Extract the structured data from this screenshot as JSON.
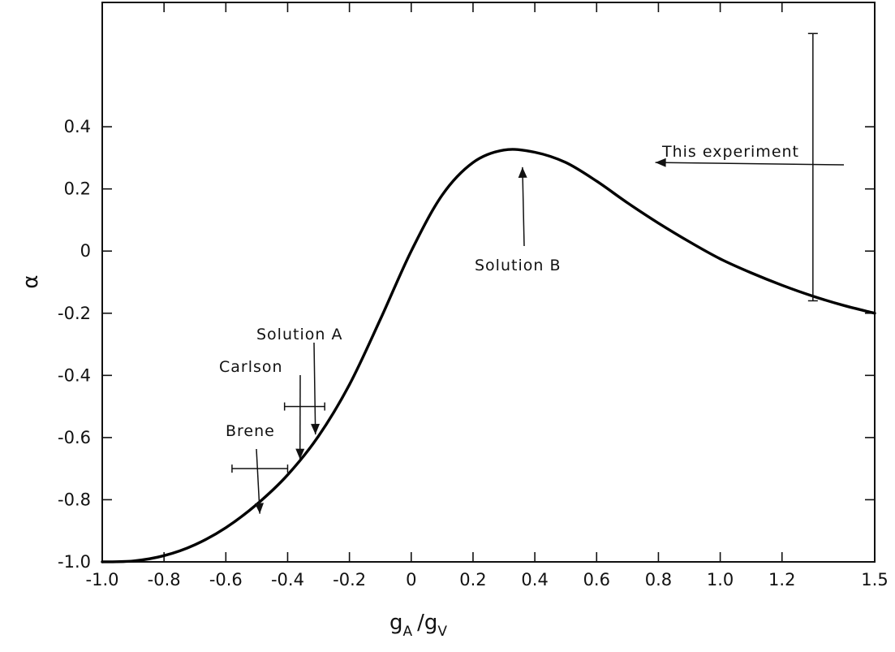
{
  "chart_data": {
    "type": "line",
    "xlabel": {
      "main": "g",
      "sub1": "A",
      "slash": "/g",
      "sub2": "V"
    },
    "ylabel": "α",
    "xlim": [
      -1.0,
      1.5
    ],
    "ylim": [
      -1.0,
      0.8
    ],
    "x_ticks": [
      -1.0,
      -0.8,
      -0.6,
      -0.4,
      -0.2,
      0,
      0.2,
      0.4,
      0.6,
      0.8,
      1.0,
      1.2,
      1.5
    ],
    "x_tick_labels": [
      "-1.0",
      "-0.8",
      "-0.6",
      "-0.4",
      "-0.2",
      "0",
      "0.2",
      "0.4",
      "0.6",
      "0.8",
      "1.0",
      "1.2",
      "1.5"
    ],
    "y_ticks": [
      -1.0,
      -0.8,
      -0.6,
      -0.4,
      -0.2,
      0,
      0.2,
      0.4
    ],
    "y_tick_labels": [
      "-1.0",
      "-0.8",
      "-0.6",
      "-0.4",
      "-0.2",
      "0",
      "0.2",
      "0.4"
    ],
    "grid": false,
    "series": [
      {
        "x": [
          -1.0,
          -0.9,
          -0.8,
          -0.7,
          -0.6,
          -0.5,
          -0.4,
          -0.3,
          -0.2,
          -0.1,
          0.0,
          0.1,
          0.2,
          0.3,
          0.4,
          0.5,
          0.6,
          0.7,
          0.8,
          0.9,
          1.0,
          1.1,
          1.2,
          1.3,
          1.4,
          1.5
        ],
        "y": [
          -1.0,
          -0.997,
          -0.98,
          -0.945,
          -0.89,
          -0.815,
          -0.72,
          -0.595,
          -0.43,
          -0.22,
          0.0,
          0.18,
          0.285,
          0.325,
          0.318,
          0.285,
          0.225,
          0.155,
          0.09,
          0.03,
          -0.025,
          -0.07,
          -0.11,
          -0.145,
          -0.175,
          -0.2
        ]
      }
    ],
    "annotations": [
      {
        "text": "This experiment",
        "arrow_direction": "left",
        "target": [
          0.79,
          0.285
        ]
      },
      {
        "text": "Solution B",
        "arrow_direction": "up",
        "target": [
          0.36,
          0.27
        ]
      },
      {
        "text": "Solution A",
        "arrow_direction": "down",
        "target": [
          -0.31,
          -0.59
        ]
      },
      {
        "text": "Carlson",
        "arrow_direction": "down",
        "target": [
          -0.36,
          -0.67
        ]
      },
      {
        "text": "Brene",
        "arrow_direction": "down",
        "target": [
          -0.49,
          -0.845
        ]
      }
    ],
    "error_bars": [
      {
        "name": "This experiment",
        "orientation": "vertical",
        "x": 1.3,
        "low": -0.16,
        "high": 0.7
      },
      {
        "name": "Carlson",
        "orientation": "horizontal",
        "y": -0.5,
        "low": -0.41,
        "high": -0.28
      },
      {
        "name": "Brene",
        "orientation": "horizontal",
        "y": -0.7,
        "low": -0.58,
        "high": -0.4
      }
    ]
  }
}
